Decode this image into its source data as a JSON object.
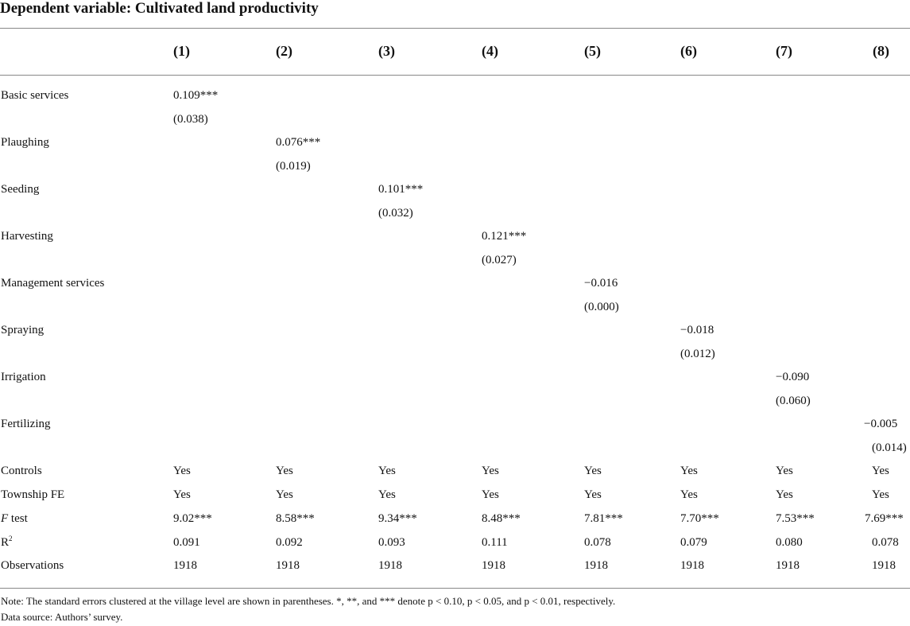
{
  "title": "Dependent variable: Cultivated land productivity",
  "columns": [
    "(1)",
    "(2)",
    "(3)",
    "(4)",
    "(5)",
    "(6)",
    "(7)",
    "(8)"
  ],
  "coefficients": [
    {
      "label": "Basic services",
      "col": 0,
      "coef": "0.109***",
      "se": "(0.038)"
    },
    {
      "label": "Plaughing",
      "col": 1,
      "coef": "0.076***",
      "se": "(0.019)"
    },
    {
      "label": "Seeding",
      "col": 2,
      "coef": "0.101***",
      "se": "(0.032)"
    },
    {
      "label": "Harvesting",
      "col": 3,
      "coef": "0.121***",
      "se": "(0.027)"
    },
    {
      "label": "Management services",
      "col": 4,
      "coef": "−0.016",
      "se": "(0.000)"
    },
    {
      "label": "Spraying",
      "col": 5,
      "coef": "−0.018",
      "se": "(0.012)"
    },
    {
      "label": "Irrigation",
      "col": 6,
      "coef": "−0.090",
      "se": "(0.060)"
    },
    {
      "label": "Fertilizing",
      "col": 7,
      "coef": "−0.005",
      "se": "(0.014)"
    }
  ],
  "stats": [
    {
      "label": "Controls",
      "values": [
        "Yes",
        "Yes",
        "Yes",
        "Yes",
        "Yes",
        "Yes",
        "Yes",
        "Yes"
      ]
    },
    {
      "label": "Township FE",
      "values": [
        "Yes",
        "Yes",
        "Yes",
        "Yes",
        "Yes",
        "Yes",
        "Yes",
        "Yes"
      ]
    },
    {
      "label_italic": "F",
      "label_rest": " test",
      "values": [
        "9.02***",
        "8.58***",
        "9.34***",
        "8.48***",
        "7.81***",
        "7.70***",
        "7.53***",
        "7.69***"
      ]
    },
    {
      "label_base": "R",
      "label_sup": "2",
      "values": [
        "0.091",
        "0.092",
        "0.093",
        "0.111",
        "0.078",
        "0.079",
        "0.080",
        "0.078"
      ]
    },
    {
      "label": "Observations",
      "values": [
        "1918",
        "1918",
        "1918",
        "1918",
        "1918",
        "1918",
        "1918",
        "1918"
      ]
    }
  ],
  "note": "Note: The standard errors clustered at the village level are shown in parentheses. *, **, and *** denote p < 0.10, p < 0.05, and p < 0.01, respectively.",
  "source": "Data source: Authors’ survey."
}
